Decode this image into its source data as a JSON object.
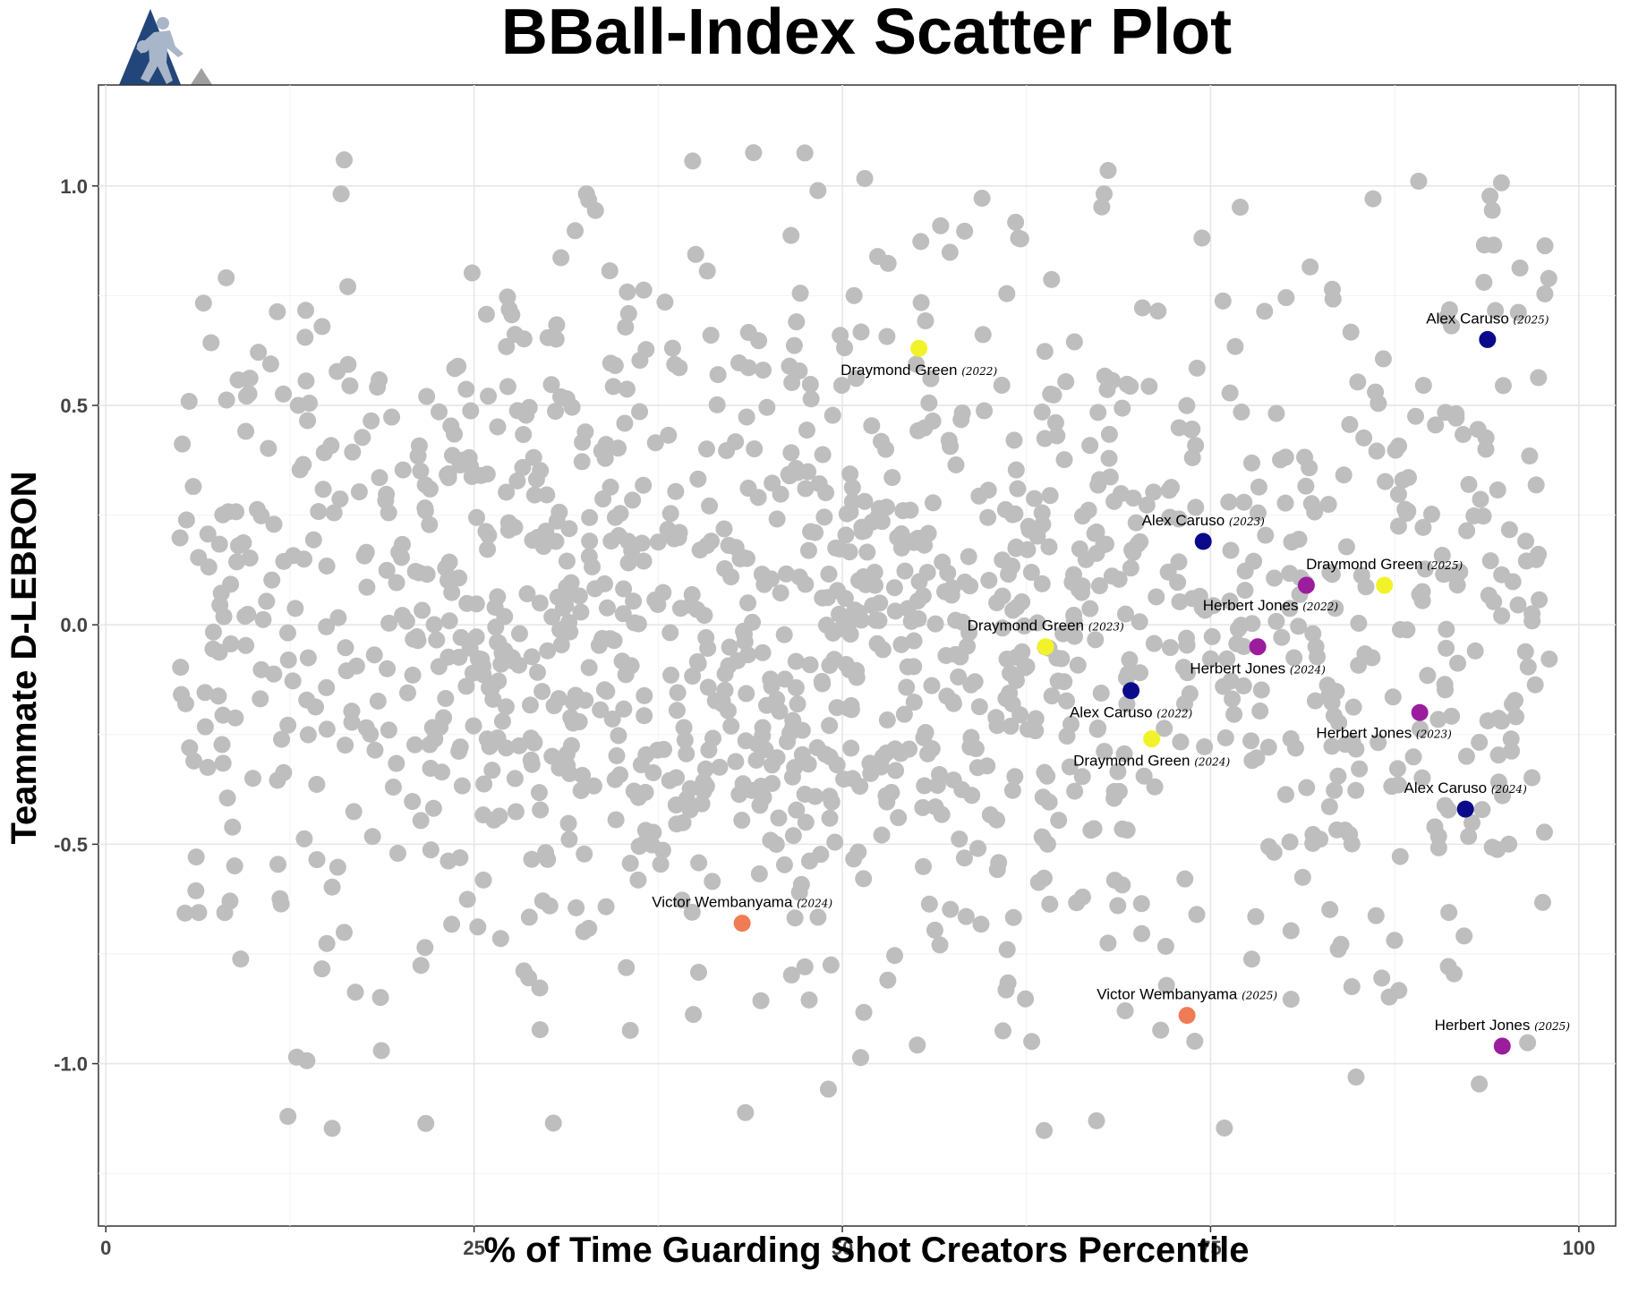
{
  "chart_data": {
    "type": "scatter",
    "title": "BBall-Index Scatter Plot",
    "xlabel": "% of Time Guarding Shot Creators Percentile",
    "ylabel": "Teammate D-LEBRON",
    "xlim": [
      -0.5,
      102.5
    ],
    "ylim": [
      -1.37,
      1.23
    ],
    "xticks": [
      0,
      25,
      50,
      75,
      100
    ],
    "xtick_labels": [
      "0",
      "25",
      "50",
      "75",
      "100"
    ],
    "yticks": [
      1.0,
      0.5,
      0.0,
      -0.5,
      -1.0
    ],
    "ytick_labels": [
      "1.0",
      "0.5",
      "0.0",
      "-0.5",
      "-1.0"
    ],
    "grid": true,
    "legend": "none",
    "colors": {
      "background_points": "#bebebe",
      "Alex Caruso": "#0a0a8a",
      "Draymond Green": "#f2f22a",
      "Herbert Jones": "#9c1c9e",
      "Victor Wembanyama": "#f07c55",
      "logo_blue": "#23467a",
      "logo_gray": "#a0a0a0"
    },
    "background_point_count": 1400,
    "highlighted": [
      {
        "player": "Draymond Green",
        "year": "(2022)",
        "x": 55.2,
        "y": 0.63,
        "label_anchor": "below"
      },
      {
        "player": "Alex Caruso",
        "year": "(2025)",
        "x": 93.8,
        "y": 0.65,
        "label_anchor": "above"
      },
      {
        "player": "Alex Caruso",
        "year": "(2023)",
        "x": 74.5,
        "y": 0.19,
        "label_anchor": "above"
      },
      {
        "player": "Draymond Green",
        "year": "(2025)",
        "x": 86.8,
        "y": 0.09,
        "label_anchor": "above"
      },
      {
        "player": "Herbert Jones",
        "year": "(2022)",
        "x": 81.5,
        "y": 0.09,
        "label_anchor": "below-left"
      },
      {
        "player": "Draymond Green",
        "year": "(2023)",
        "x": 63.8,
        "y": -0.05,
        "label_anchor": "above"
      },
      {
        "player": "Herbert Jones",
        "year": "(2024)",
        "x": 78.2,
        "y": -0.05,
        "label_anchor": "below"
      },
      {
        "player": "Alex Caruso",
        "year": "(2022)",
        "x": 69.6,
        "y": -0.15,
        "label_anchor": "below"
      },
      {
        "player": "Herbert Jones",
        "year": "(2023)",
        "x": 89.2,
        "y": -0.2,
        "label_anchor": "below-left"
      },
      {
        "player": "Draymond Green",
        "year": "(2024)",
        "x": 71.0,
        "y": -0.26,
        "label_anchor": "below"
      },
      {
        "player": "Alex Caruso",
        "year": "(2024)",
        "x": 92.3,
        "y": -0.42,
        "label_anchor": "above"
      },
      {
        "player": "Victor Wembanyama",
        "year": "(2024)",
        "x": 43.2,
        "y": -0.68,
        "label_anchor": "above"
      },
      {
        "player": "Victor Wembanyama",
        "year": "(2025)",
        "x": 73.4,
        "y": -0.89,
        "label_anchor": "above"
      },
      {
        "player": "Herbert Jones",
        "year": "(2025)",
        "x": 94.8,
        "y": -0.96,
        "label_anchor": "above"
      }
    ]
  }
}
